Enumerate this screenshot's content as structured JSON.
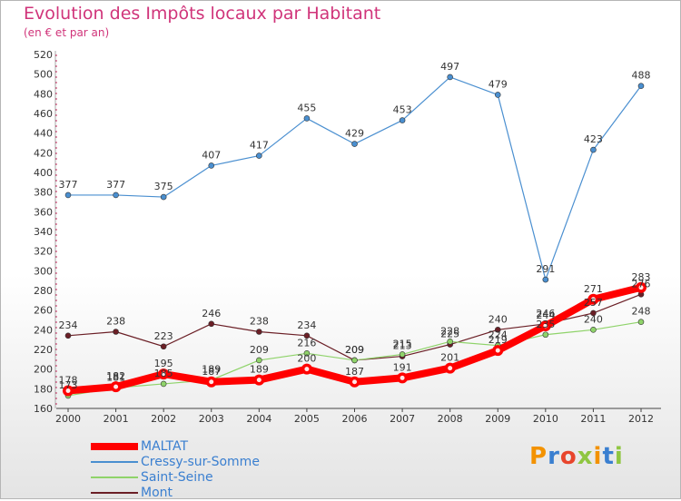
{
  "header": {
    "title": "Evolution des Impôts locaux par Habitant",
    "subtitle": "(en € et par an)"
  },
  "colors": {
    "title": "#d0347a",
    "axis": "#333333",
    "grid": "#cc3366",
    "legend_text": "#3a7fd0"
  },
  "chart_data": {
    "type": "line",
    "title": "Evolution des Impôts locaux par Habitant",
    "subtitle": "(en € et par an)",
    "xlabel": "",
    "ylabel": "",
    "x": [
      2000,
      2001,
      2002,
      2003,
      2004,
      2005,
      2006,
      2007,
      2008,
      2009,
      2010,
      2011,
      2012
    ],
    "ylim": [
      160,
      520
    ],
    "yticks": [
      160,
      180,
      200,
      220,
      240,
      260,
      280,
      300,
      320,
      340,
      360,
      380,
      400,
      420,
      440,
      460,
      480,
      500,
      520
    ],
    "grid": false,
    "legend_position": "bottom-left",
    "series": [
      {
        "name": "MALTAT",
        "color": "#ff0000",
        "values": [
          178,
          182,
          195,
          187,
          189,
          200,
          187,
          191,
          201,
          219,
          244,
          271,
          283
        ]
      },
      {
        "name": "Cressy-sur-Somme",
        "color": "#4a8fd0",
        "values": [
          377,
          377,
          375,
          407,
          417,
          455,
          429,
          453,
          497,
          479,
          291,
          423,
          488
        ]
      },
      {
        "name": "Saint-Seine",
        "color": "#8fd36a",
        "values": [
          173,
          181,
          185,
          189,
          209,
          216,
          209,
          215,
          228,
          224,
          235,
          240,
          248
        ]
      },
      {
        "name": "Mont",
        "color": "#6b1f26",
        "values": [
          234,
          238,
          223,
          246,
          238,
          234,
          209,
          213,
          225,
          240,
          246,
          257,
          276
        ]
      }
    ]
  },
  "legend": {
    "items": [
      {
        "name": "MALTAT",
        "color": "#ff0000"
      },
      {
        "name": "Cressy-sur-Somme",
        "color": "#4a8fd0"
      },
      {
        "name": "Saint-Seine",
        "color": "#8fd36a"
      },
      {
        "name": "Mont",
        "color": "#6b1f26"
      }
    ]
  },
  "logo": {
    "text": "Proxiti",
    "letter_colors": [
      "#f39200",
      "#3a7fd0",
      "#e8452c",
      "#8fc641",
      "#f39200",
      "#3a7fd0",
      "#8fc641"
    ]
  }
}
